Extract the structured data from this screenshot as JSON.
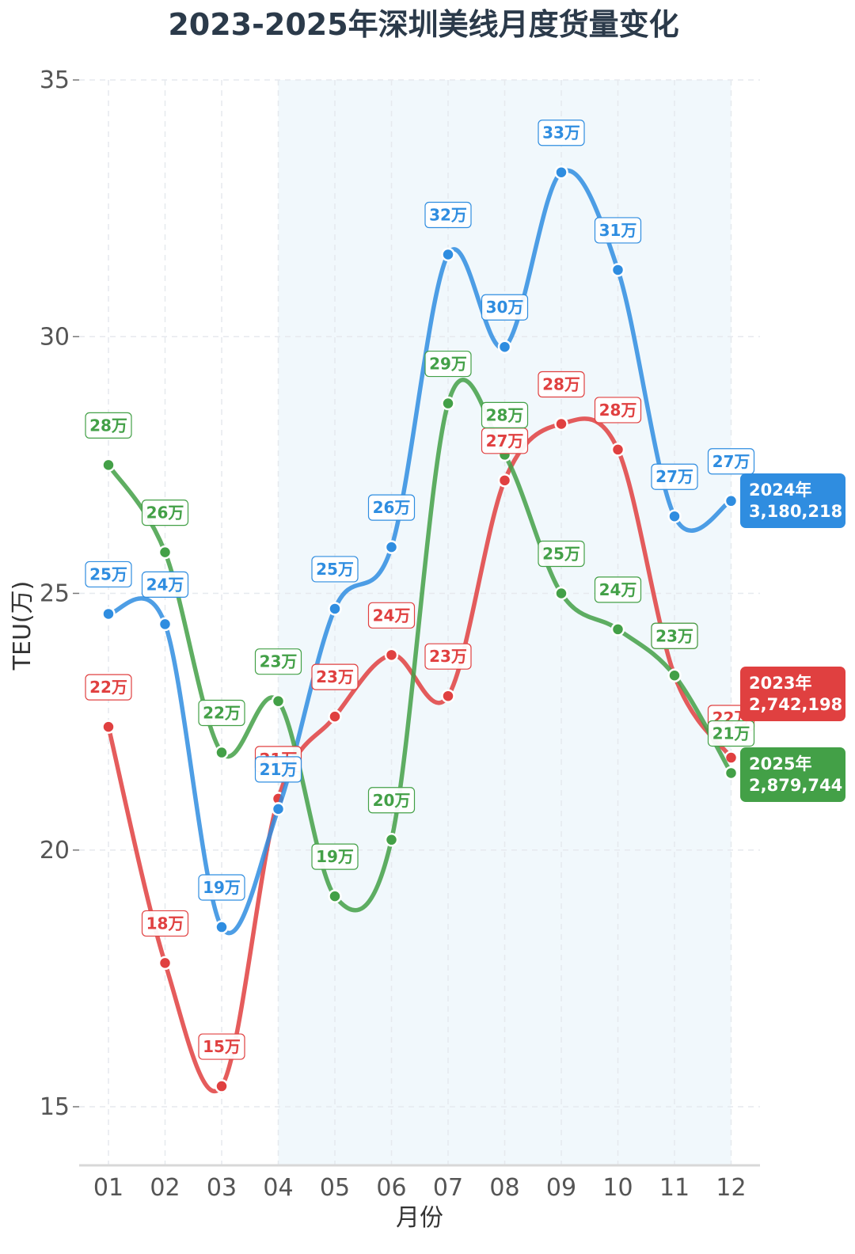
{
  "chart_data": {
    "type": "line",
    "title": "2023-2025年深圳美线月度货量变化",
    "xlabel": "月份",
    "ylabel": "TEU(万)",
    "categories": [
      "01",
      "02",
      "03",
      "04",
      "05",
      "06",
      "07",
      "08",
      "09",
      "10",
      "11",
      "12"
    ],
    "ylim": [
      13.9,
      35
    ],
    "yticks": [
      15,
      20,
      25,
      30,
      35
    ],
    "grid": true,
    "highlight_range": [
      "04",
      "12"
    ],
    "series": [
      {
        "name": "2023年",
        "color": "#e04040",
        "values": [
          22.4,
          17.8,
          15.4,
          21.0,
          22.6,
          23.8,
          23.0,
          27.2,
          28.3,
          27.8,
          23.4,
          21.8
        ],
        "labels": [
          "22万",
          "18万",
          "15万",
          "21万",
          "23万",
          "24万",
          "23万",
          "27万",
          "28万",
          "28万",
          "23万",
          "22万"
        ],
        "end_value": "2,742,198"
      },
      {
        "name": "2024年",
        "color": "#2f8de0",
        "values": [
          24.6,
          24.4,
          18.5,
          20.8,
          24.7,
          25.9,
          31.6,
          29.8,
          33.2,
          31.3,
          26.5,
          26.8
        ],
        "labels": [
          "25万",
          "24万",
          "19万",
          "21万",
          "25万",
          "26万",
          "32万",
          "30万",
          "33万",
          "31万",
          "27万",
          "27万"
        ],
        "end_value": "3,180,218"
      },
      {
        "name": "2025年",
        "color": "#43a047",
        "values": [
          27.5,
          25.8,
          21.9,
          22.9,
          19.1,
          20.2,
          28.7,
          27.7,
          25.0,
          24.3,
          23.4,
          21.5
        ],
        "labels": [
          "28万",
          "26万",
          "22万",
          "23万",
          "19万",
          "20万",
          "29万",
          "28万",
          "25万",
          "24万",
          "23万",
          "21万"
        ],
        "end_value": "2,879,744"
      }
    ]
  }
}
